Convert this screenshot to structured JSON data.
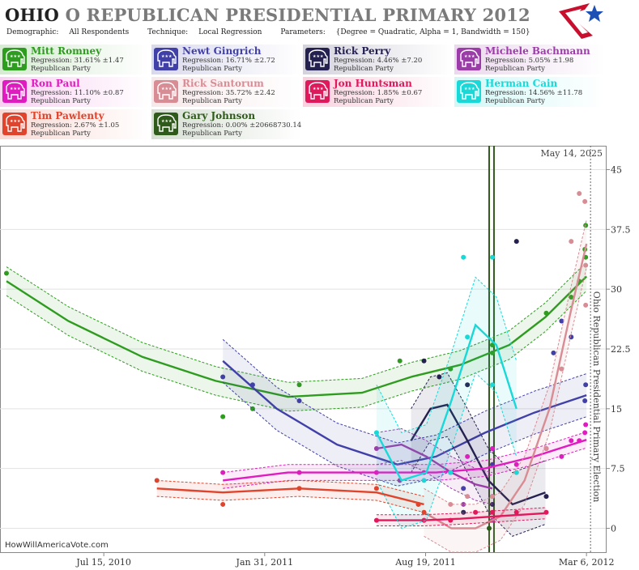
{
  "header": {
    "title_state": "OHIO",
    "title_rest": "O REPUBLICAN PRESIDENTIAL PRIMARY 2012",
    "demographic_label": "Demographic:",
    "demographic_value": "All Respondents",
    "technique_label": "Technique:",
    "technique_value": "Local Regression",
    "parameters_label": "Parameters:",
    "parameters_value": "{Degree = Quadratic, Alpha = 1, Bandwidth = 150}"
  },
  "source": "HowWillAmericaVote.com",
  "legend": [
    {
      "name": "Mitt Romney",
      "regression": "Regression: 31.61% ±1.47",
      "party": "Republican Party",
      "color": "#2e9c1e"
    },
    {
      "name": "Newt Gingrich",
      "regression": "Regression: 16.71% ±2.72",
      "party": "Republican Party",
      "color": "#4040a8"
    },
    {
      "name": "Rick Perry",
      "regression": "Regression: 4.46% ±7.20",
      "party": "Republican Party",
      "color": "#242050"
    },
    {
      "name": "Michele Bachmann",
      "regression": "Regression: 5.05% ±1.98",
      "party": "Republican Party",
      "color": "#9c3ca8"
    },
    {
      "name": "Ron Paul",
      "regression": "Regression: 11.10% ±0.87",
      "party": "Republican Party",
      "color": "#e01cc0"
    },
    {
      "name": "Rick Santorum",
      "regression": "Regression: 35.72% ±2.42",
      "party": "Republican Party",
      "color": "#d88c94"
    },
    {
      "name": "Jon Huntsman",
      "regression": "Regression: 1.85% ±0.67",
      "party": "Republican Party",
      "color": "#e0185c"
    },
    {
      "name": "Herman Cain",
      "regression": "Regression: 14.56% ±11.78",
      "party": "Republican Party",
      "color": "#18d8d8"
    },
    {
      "name": "Tim Pawlenty",
      "regression": "Regression: 2.67% ±1.05",
      "party": "Republican Party",
      "color": "#e0442c"
    },
    {
      "name": "Gary Johnson",
      "regression": "Regression: 0.00% ±20668730.14",
      "party": "Republican Party",
      "color": "#2e5a1a"
    }
  ],
  "chart_data": {
    "type": "scatter",
    "date_label": "May 14, 2025",
    "event_label": "Ohio Republican Presidential Primary Election",
    "x_ticks": [
      "Jul 15, 2010",
      "Jan 31, 2011",
      "Aug 19, 2011",
      "Mar 6, 2012"
    ],
    "y_ticks": [
      "0",
      "7.5",
      "15",
      "22.5",
      "30",
      "37.5",
      "45"
    ],
    "ylim": [
      -3,
      48
    ],
    "xlim": [
      "2010-03-10",
      "2012-03-30"
    ],
    "event_date": "2012-03-06",
    "vertical_markers": [
      "2011-11-06",
      "2011-11-12"
    ],
    "series": [
      {
        "name": "Mitt Romney",
        "color": "#2e9c1e",
        "points": [
          [
            "2010-03-16",
            32
          ],
          [
            "2010-12-10",
            14
          ],
          [
            "2011-01-16",
            15
          ],
          [
            "2011-03-15",
            18
          ],
          [
            "2011-07-18",
            21
          ],
          [
            "2011-09-19",
            20
          ],
          [
            "2011-11-10",
            23
          ],
          [
            "2011-11-10",
            22
          ],
          [
            "2011-11-10",
            1
          ],
          [
            "2012-01-16",
            27
          ],
          [
            "2012-02-16",
            29
          ],
          [
            "2012-02-26",
            31
          ],
          [
            "2012-03-04",
            35
          ],
          [
            "2012-03-05",
            38
          ],
          [
            "2012-03-05",
            34
          ]
        ],
        "curve": [
          [
            "2010-03-16",
            31
          ],
          [
            "2010-06-01",
            26
          ],
          [
            "2010-09-01",
            21.5
          ],
          [
            "2010-12-01",
            18.5
          ],
          [
            "2011-03-01",
            16.5
          ],
          [
            "2011-06-01",
            17
          ],
          [
            "2011-08-01",
            19
          ],
          [
            "2011-10-01",
            20.5
          ],
          [
            "2011-12-01",
            23
          ],
          [
            "2012-01-15",
            26.5
          ],
          [
            "2012-03-06",
            31.6
          ]
        ],
        "band": 1.8
      },
      {
        "name": "Newt Gingrich",
        "color": "#4040a8",
        "points": [
          [
            "2010-12-10",
            19
          ],
          [
            "2011-01-16",
            18
          ],
          [
            "2011-03-15",
            16
          ],
          [
            "2011-10-05",
            5
          ],
          [
            "2011-11-10",
            8
          ],
          [
            "2011-11-10",
            4
          ],
          [
            "2012-01-25",
            22
          ],
          [
            "2012-02-04",
            26
          ],
          [
            "2012-02-16",
            24
          ],
          [
            "2012-03-04",
            16
          ],
          [
            "2012-03-05",
            18
          ]
        ],
        "curve": [
          [
            "2010-12-10",
            21
          ],
          [
            "2011-02-15",
            15
          ],
          [
            "2011-05-01",
            10.5
          ],
          [
            "2011-07-15",
            8
          ],
          [
            "2011-09-01",
            9
          ],
          [
            "2011-11-01",
            12
          ],
          [
            "2012-01-01",
            14.5
          ],
          [
            "2012-03-06",
            16.7
          ]
        ],
        "band": 2.7
      },
      {
        "name": "Rick Perry",
        "color": "#242050",
        "points": [
          [
            "2011-08-17",
            21
          ],
          [
            "2011-09-05",
            19
          ],
          [
            "2011-10-10",
            18
          ],
          [
            "2011-11-10",
            3
          ],
          [
            "2011-12-10",
            36
          ],
          [
            "2012-01-16",
            4
          ],
          [
            "2011-10-05",
            2
          ]
        ],
        "curve": [
          [
            "2011-08-01",
            11
          ],
          [
            "2011-08-25",
            15
          ],
          [
            "2011-09-15",
            15.5
          ],
          [
            "2011-10-10",
            11
          ],
          [
            "2011-11-05",
            6
          ],
          [
            "2011-12-05",
            3
          ],
          [
            "2012-01-15",
            4.5
          ]
        ],
        "band": 4.0
      },
      {
        "name": "Michele Bachmann",
        "color": "#9c3ca8",
        "points": [
          [
            "2011-06-19",
            10
          ],
          [
            "2011-07-18",
            6
          ],
          [
            "2011-08-10",
            3
          ],
          [
            "2011-10-05",
            3
          ],
          [
            "2011-11-10",
            1
          ]
        ],
        "curve": [
          [
            "2011-06-19",
            10
          ],
          [
            "2011-07-20",
            10.5
          ],
          [
            "2011-08-20",
            9
          ],
          [
            "2011-09-20",
            7
          ],
          [
            "2011-10-20",
            5.5
          ],
          [
            "2011-11-10",
            5
          ]
        ],
        "band": 2.0
      },
      {
        "name": "Ron Paul",
        "color": "#e01cc0",
        "points": [
          [
            "2010-12-10",
            7
          ],
          [
            "2011-03-15",
            7
          ],
          [
            "2011-06-19",
            7
          ],
          [
            "2011-08-17",
            7
          ],
          [
            "2011-09-19",
            7
          ],
          [
            "2011-10-10",
            9
          ],
          [
            "2011-11-10",
            10
          ],
          [
            "2011-12-10",
            8
          ],
          [
            "2012-01-16",
            10
          ],
          [
            "2012-02-04",
            9
          ],
          [
            "2012-02-16",
            11
          ],
          [
            "2012-02-26",
            11
          ],
          [
            "2012-03-04",
            12
          ],
          [
            "2012-03-05",
            13
          ]
        ],
        "curve": [
          [
            "2010-12-10",
            6
          ],
          [
            "2011-03-01",
            7
          ],
          [
            "2011-06-01",
            7
          ],
          [
            "2011-09-01",
            7
          ],
          [
            "2011-11-01",
            7.5
          ],
          [
            "2012-01-01",
            9
          ],
          [
            "2012-03-06",
            11.1
          ]
        ],
        "band": 1.0
      },
      {
        "name": "Rick Santorum",
        "color": "#d88c94",
        "points": [
          [
            "2011-08-17",
            1
          ],
          [
            "2011-09-19",
            3
          ],
          [
            "2011-10-10",
            4
          ],
          [
            "2011-11-10",
            4
          ],
          [
            "2011-12-10",
            7
          ],
          [
            "2012-01-16",
            10
          ],
          [
            "2012-02-04",
            20
          ],
          [
            "2012-02-16",
            36
          ],
          [
            "2012-02-26",
            42
          ],
          [
            "2012-03-04",
            41
          ],
          [
            "2012-03-05",
            33
          ],
          [
            "2012-03-05",
            28
          ]
        ],
        "curve": [
          [
            "2011-08-17",
            2
          ],
          [
            "2011-09-20",
            0
          ],
          [
            "2011-10-20",
            0
          ],
          [
            "2011-11-20",
            1.5
          ],
          [
            "2011-12-20",
            6
          ],
          [
            "2012-01-20",
            15
          ],
          [
            "2012-02-15",
            27
          ],
          [
            "2012-03-06",
            35.7
          ]
        ],
        "band": 3.0
      },
      {
        "name": "Jon Huntsman",
        "color": "#e0185c",
        "points": [
          [
            "2011-06-19",
            1
          ],
          [
            "2011-08-17",
            1
          ],
          [
            "2011-09-19",
            1
          ],
          [
            "2011-10-20",
            2
          ],
          [
            "2011-11-10",
            2
          ],
          [
            "2011-12-10",
            2
          ],
          [
            "2012-01-16",
            2
          ]
        ],
        "curve": [
          [
            "2011-06-19",
            1
          ],
          [
            "2011-08-17",
            1
          ],
          [
            "2011-10-01",
            1.2
          ],
          [
            "2011-11-15",
            1.5
          ],
          [
            "2012-01-16",
            1.9
          ]
        ],
        "band": 0.7
      },
      {
        "name": "Herman Cain",
        "color": "#18d8d8",
        "points": [
          [
            "2011-06-19",
            12
          ],
          [
            "2011-08-17",
            6
          ],
          [
            "2011-09-19",
            7
          ],
          [
            "2011-10-10",
            24
          ],
          [
            "2011-11-10",
            34
          ],
          [
            "2011-10-05",
            34
          ],
          [
            "2011-11-10",
            18
          ],
          [
            "2011-12-10",
            7
          ]
        ],
        "curve": [
          [
            "2011-06-19",
            12
          ],
          [
            "2011-07-20",
            6
          ],
          [
            "2011-08-20",
            7
          ],
          [
            "2011-09-20",
            16
          ],
          [
            "2011-10-20",
            25.5
          ],
          [
            "2011-11-15",
            23
          ],
          [
            "2011-12-10",
            15
          ]
        ],
        "band": 6.0
      },
      {
        "name": "Tim Pawlenty",
        "color": "#e0442c",
        "points": [
          [
            "2010-09-19",
            6
          ],
          [
            "2010-12-10",
            3
          ],
          [
            "2011-03-15",
            5
          ],
          [
            "2011-06-19",
            5
          ],
          [
            "2011-08-10",
            3
          ],
          [
            "2011-08-17",
            2
          ]
        ],
        "curve": [
          [
            "2010-09-19",
            5
          ],
          [
            "2010-12-10",
            4.5
          ],
          [
            "2011-03-15",
            5
          ],
          [
            "2011-06-19",
            4.5
          ],
          [
            "2011-08-17",
            3
          ]
        ],
        "band": 1.0
      },
      {
        "name": "Gary Johnson",
        "color": "#2e5a1a",
        "points": [
          [
            "2011-11-06",
            0
          ]
        ],
        "curve": [],
        "band": 0
      }
    ]
  }
}
